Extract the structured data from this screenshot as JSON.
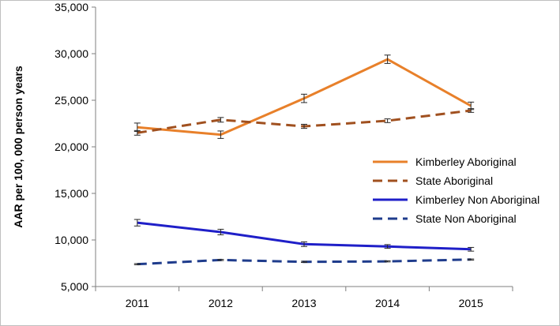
{
  "chart_data": {
    "type": "line",
    "title": "",
    "xlabel": "",
    "ylabel": "AAR per 100, 000 person years",
    "categories": [
      "2011",
      "2012",
      "2013",
      "2014",
      "2015"
    ],
    "ylim": [
      5000,
      35000
    ],
    "yticks": [
      5000,
      10000,
      15000,
      20000,
      25000,
      30000,
      35000
    ],
    "ytick_labels": [
      "5,000",
      "10,000",
      "15,000",
      "20,000",
      "25,000",
      "30,000",
      "35,000"
    ],
    "grid": false,
    "legend_position": "right-middle",
    "series": [
      {
        "name": "Kimberley Aboriginal",
        "values": [
          22100,
          21300,
          25200,
          29400,
          24400
        ],
        "error": [
          450,
          400,
          450,
          450,
          400
        ],
        "color": "#E8802A",
        "dash": "solid"
      },
      {
        "name": "State Aboriginal",
        "values": [
          21500,
          22900,
          22200,
          22800,
          23900
        ],
        "error": [
          250,
          250,
          220,
          200,
          200
        ],
        "color": "#A0501F",
        "dash": "dashed"
      },
      {
        "name": "Kimberley Non Aboriginal",
        "values": [
          11850,
          10850,
          9550,
          9300,
          9000
        ],
        "error": [
          350,
          300,
          250,
          200,
          200
        ],
        "color": "#1F1FC8",
        "dash": "solid"
      },
      {
        "name": "State Non Aboriginal",
        "values": [
          7400,
          7850,
          7650,
          7700,
          7900
        ],
        "error": [
          60,
          60,
          60,
          60,
          60
        ],
        "color": "#1F3C8C",
        "dash": "dashed"
      }
    ]
  }
}
